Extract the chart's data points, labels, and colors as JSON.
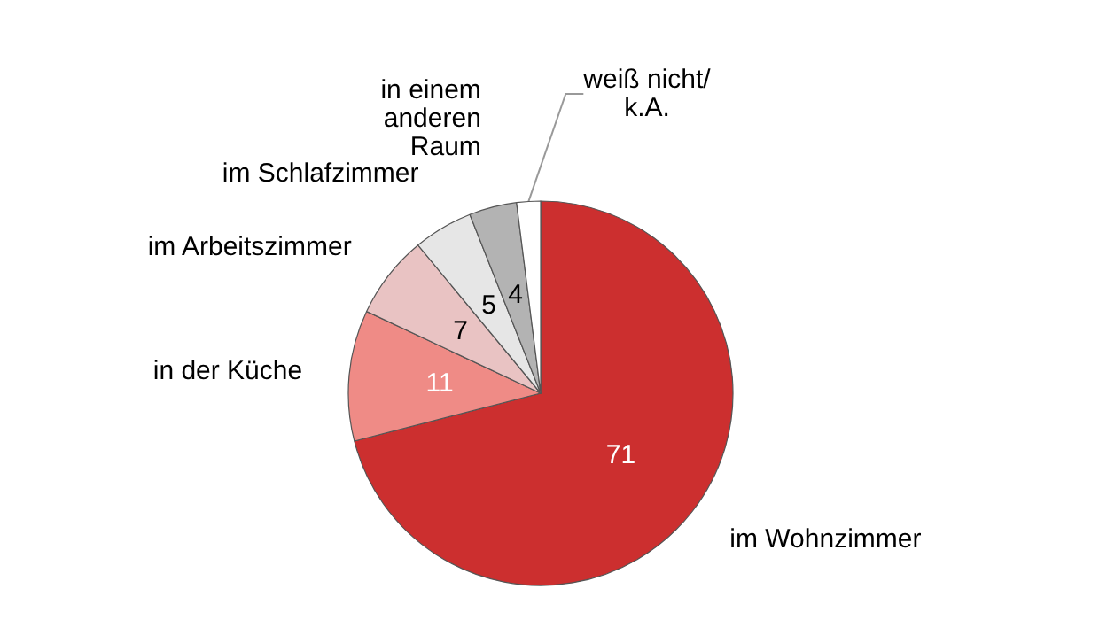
{
  "chart_data": {
    "type": "pie",
    "categories": [
      "im Wohnzimmer",
      "in der Küche",
      "im Arbeitszimmer",
      "im Schlafzimmer",
      "in einem\nanderen\nRaum",
      "weiß nicht/\nk.A."
    ],
    "values": [
      71,
      11,
      7,
      5,
      4,
      2
    ],
    "value_labels": [
      "71",
      "11",
      "7",
      "5",
      "4",
      null
    ],
    "colors": [
      "#cc2f2f",
      "#ef8b86",
      "#e9c3c3",
      "#e6e6e6",
      "#b3b3b3",
      "#ffffff"
    ],
    "legend": false
  }
}
